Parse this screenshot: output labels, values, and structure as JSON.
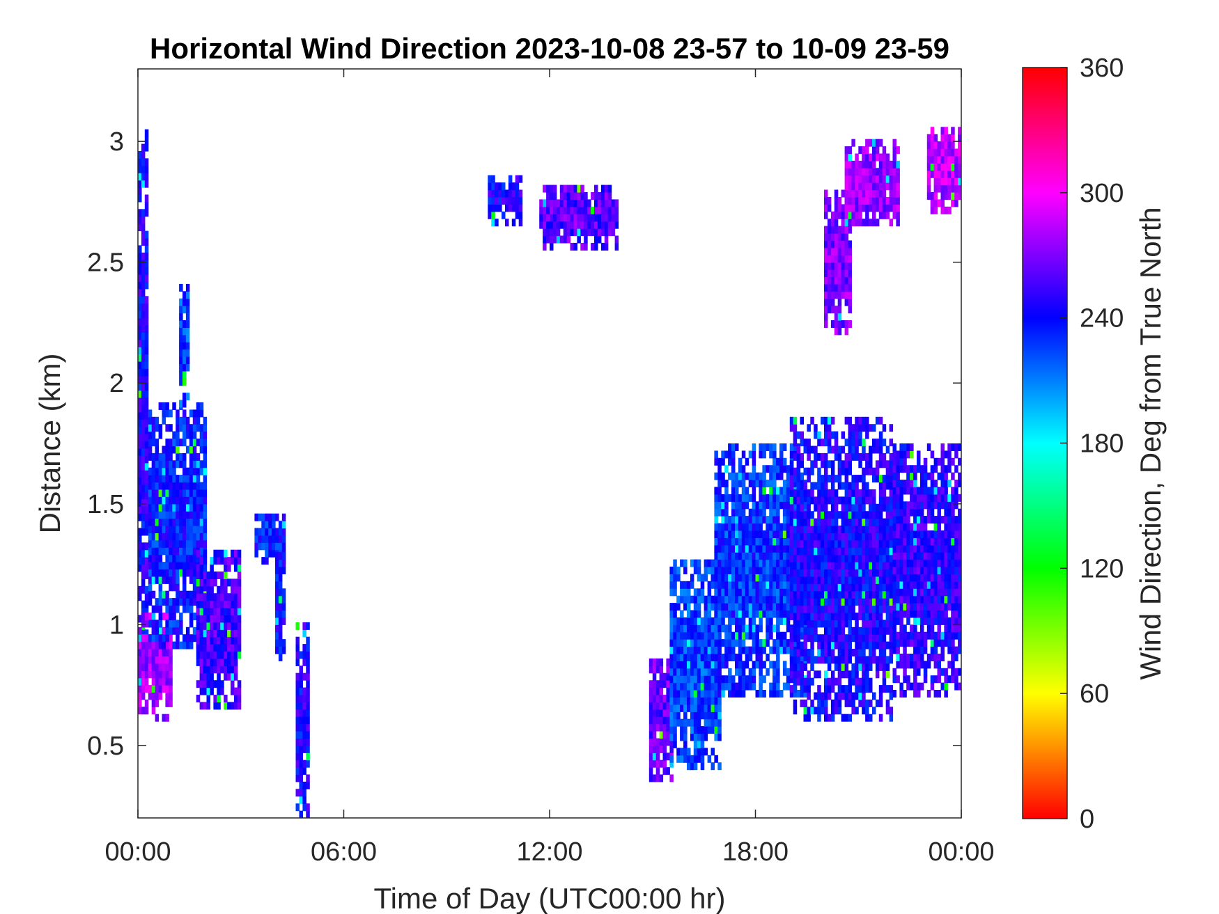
{
  "chart_data": {
    "type": "heatmap",
    "title": "Horizontal Wind Direction 2023-10-08 23-57 to 10-09 23-59",
    "xlabel": "Time of Day (UTC00:00 hr)",
    "ylabel": "Distance (km)",
    "colorbar_label": "Wind Direction, Deg from True North",
    "x_range_hours": [
      0,
      24
    ],
    "y_range_km": [
      0.2,
      3.3
    ],
    "colorbar_range_deg": [
      0,
      360
    ],
    "x_ticks": [
      {
        "value": 0,
        "label": "00:00"
      },
      {
        "value": 6,
        "label": "06:00"
      },
      {
        "value": 12,
        "label": "12:00"
      },
      {
        "value": 18,
        "label": "18:00"
      },
      {
        "value": 24,
        "label": "00:00"
      }
    ],
    "y_ticks": [
      {
        "value": 0.5,
        "label": "0.5"
      },
      {
        "value": 1,
        "label": "1"
      },
      {
        "value": 1.5,
        "label": "1.5"
      },
      {
        "value": 2,
        "label": "2"
      },
      {
        "value": 2.5,
        "label": "2.5"
      },
      {
        "value": 3,
        "label": "3"
      }
    ],
    "colorbar_ticks": [
      {
        "value": 0,
        "label": "0"
      },
      {
        "value": 60,
        "label": "60"
      },
      {
        "value": 120,
        "label": "120"
      },
      {
        "value": 180,
        "label": "180"
      },
      {
        "value": 240,
        "label": "240"
      },
      {
        "value": 300,
        "label": "300"
      },
      {
        "value": 360,
        "label": "360"
      }
    ],
    "colormap": [
      "#ff0000",
      "#ffff00",
      "#00ff00",
      "#00ffff",
      "#0000ff",
      "#ff00ff",
      "#ff0000"
    ],
    "data_regions": [
      {
        "x_start_h": 0.0,
        "x_end_h": 0.3,
        "y_bottom_km": 0.8,
        "y_top_km": 3.05,
        "direction_deg": 245
      },
      {
        "x_start_h": 0.0,
        "x_end_h": 1.0,
        "y_bottom_km": 0.6,
        "y_top_km": 1.05,
        "direction_deg": 280
      },
      {
        "x_start_h": 0.3,
        "x_end_h": 2.0,
        "y_bottom_km": 0.9,
        "y_top_km": 1.9,
        "direction_deg": 235
      },
      {
        "x_start_h": 1.2,
        "x_end_h": 1.5,
        "y_bottom_km": 1.9,
        "y_top_km": 2.4,
        "direction_deg": 225
      },
      {
        "x_start_h": 1.7,
        "x_end_h": 3.0,
        "y_bottom_km": 0.65,
        "y_top_km": 1.3,
        "direction_deg": 255
      },
      {
        "x_start_h": 3.4,
        "x_end_h": 4.3,
        "y_bottom_km": 1.25,
        "y_top_km": 1.45,
        "direction_deg": 235
      },
      {
        "x_start_h": 4.0,
        "x_end_h": 4.3,
        "y_bottom_km": 0.85,
        "y_top_km": 1.3,
        "direction_deg": 240
      },
      {
        "x_start_h": 4.6,
        "x_end_h": 5.0,
        "y_bottom_km": 0.2,
        "y_top_km": 1.0,
        "direction_deg": 245
      },
      {
        "x_start_h": 10.2,
        "x_end_h": 11.2,
        "y_bottom_km": 2.65,
        "y_top_km": 2.85,
        "direction_deg": 245
      },
      {
        "x_start_h": 11.7,
        "x_end_h": 14.0,
        "y_bottom_km": 2.55,
        "y_top_km": 2.8,
        "direction_deg": 260
      },
      {
        "x_start_h": 14.9,
        "x_end_h": 15.6,
        "y_bottom_km": 0.35,
        "y_top_km": 0.85,
        "direction_deg": 265
      },
      {
        "x_start_h": 15.5,
        "x_end_h": 17.0,
        "y_bottom_km": 0.4,
        "y_top_km": 1.25,
        "direction_deg": 225
      },
      {
        "x_start_h": 16.8,
        "x_end_h": 19.5,
        "y_bottom_km": 0.7,
        "y_top_km": 1.75,
        "direction_deg": 230
      },
      {
        "x_start_h": 19.0,
        "x_end_h": 22.0,
        "y_bottom_km": 0.6,
        "y_top_km": 1.85,
        "direction_deg": 245
      },
      {
        "x_start_h": 22.0,
        "x_end_h": 24.0,
        "y_bottom_km": 0.7,
        "y_top_km": 1.75,
        "direction_deg": 250
      },
      {
        "x_start_h": 20.0,
        "x_end_h": 20.8,
        "y_bottom_km": 2.2,
        "y_top_km": 2.8,
        "direction_deg": 270
      },
      {
        "x_start_h": 20.6,
        "x_end_h": 22.2,
        "y_bottom_km": 2.65,
        "y_top_km": 3.0,
        "direction_deg": 275
      },
      {
        "x_start_h": 23.0,
        "x_end_h": 24.0,
        "y_bottom_km": 2.7,
        "y_top_km": 3.05,
        "direction_deg": 285
      }
    ]
  }
}
